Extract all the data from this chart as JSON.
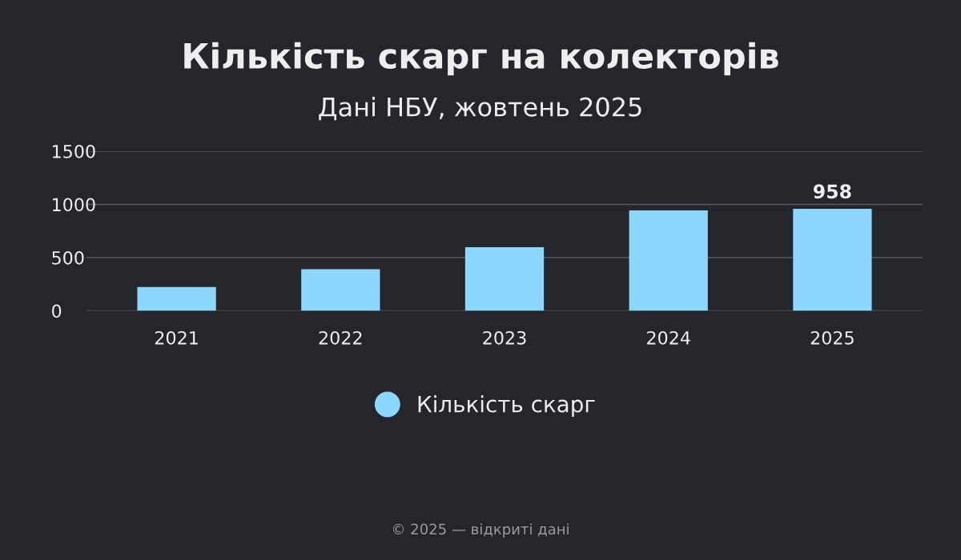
{
  "chart_data": {
    "type": "bar",
    "title": "Кількість скарг на колекторів",
    "subtitle": "Дані НБУ, жовтень 2025",
    "categories": [
      "2021",
      "2022",
      "2023",
      "2024",
      "2025"
    ],
    "series": [
      {
        "name": "Кількість скарг",
        "color": "#8dd6fc",
        "values": [
          224,
          391,
          598,
          943,
          958
        ],
        "value_labels": [
          null,
          null,
          null,
          null,
          "958"
        ]
      }
    ],
    "ylim": [
      0,
      1500
    ],
    "yticks": [
      0,
      500,
      1000,
      1500
    ],
    "grid": "y",
    "legend": "bottom",
    "annotations": [
      "© 2025 — відкриті дані"
    ]
  }
}
